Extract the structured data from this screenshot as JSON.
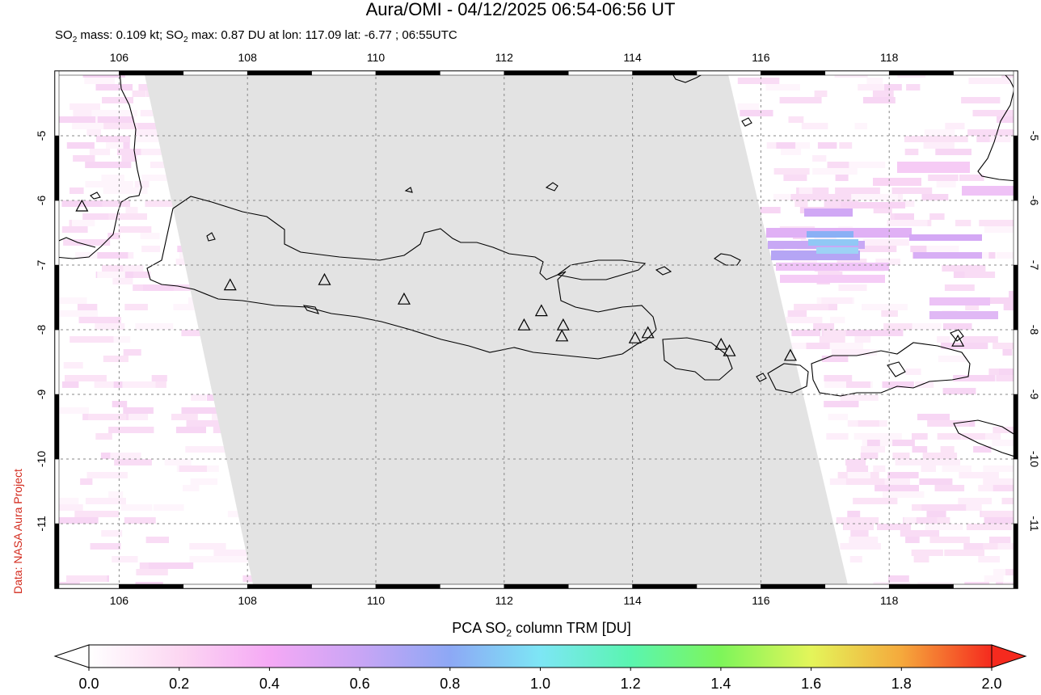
{
  "title": "Aura/OMI - 04/12/2025 06:54-06:56 UT",
  "subtitle": {
    "mass_prefix": "SO",
    "mass_sub": "2",
    "mass_text": " mass: 0.109 kt; SO",
    "max_sub": "2",
    "max_text": " max: 0.87 DU at lon: 117.09 lat: -6.77 ; 06:55UTC"
  },
  "credit": "Data: NASA Aura Project",
  "map": {
    "lon_range": [
      105,
      120
    ],
    "lat_range": [
      -12,
      -4
    ],
    "lon_ticks": [
      "106",
      "108",
      "110",
      "112",
      "114",
      "116",
      "118"
    ],
    "lon_values": [
      106,
      108,
      110,
      112,
      114,
      116,
      118
    ],
    "lat_ticks": [
      "-5",
      "-6",
      "-7",
      "-8",
      "-9",
      "-10",
      "-11"
    ],
    "lat_values": [
      -5,
      -6,
      -7,
      -8,
      -9,
      -10,
      -11
    ],
    "volcanoes": [
      {
        "lon": 105.42,
        "lat": -6.1
      },
      {
        "lon": 107.73,
        "lat": -7.32
      },
      {
        "lon": 109.2,
        "lat": -7.24
      },
      {
        "lon": 110.44,
        "lat": -7.54
      },
      {
        "lon": 112.31,
        "lat": -7.94
      },
      {
        "lon": 112.58,
        "lat": -7.72
      },
      {
        "lon": 112.92,
        "lat": -7.94
      },
      {
        "lon": 112.9,
        "lat": -8.11
      },
      {
        "lon": 114.04,
        "lat": -8.14
      },
      {
        "lon": 114.24,
        "lat": -8.06
      },
      {
        "lon": 115.38,
        "lat": -8.24
      },
      {
        "lon": 115.51,
        "lat": -8.34
      },
      {
        "lon": 116.46,
        "lat": -8.41
      },
      {
        "lon": 119.07,
        "lat": -8.19
      }
    ],
    "so2_max_location": {
      "lon": 117.09,
      "lat": -6.77
    }
  },
  "colorbar": {
    "title_prefix": "PCA SO",
    "title_sub": "2",
    "title_suffix": " column TRM [DU]",
    "ticks": [
      "0.0",
      "0.2",
      "0.4",
      "0.6",
      "0.8",
      "1.0",
      "1.2",
      "1.4",
      "1.6",
      "1.8",
      "2.0"
    ],
    "range": [
      0,
      2
    ],
    "colors": [
      "#ffffff",
      "#fcd7f2",
      "#f5a9f5",
      "#c9a5f5",
      "#8da8f5",
      "#7de6f5",
      "#5af5b0",
      "#7ef55a",
      "#e4f55a",
      "#f5a93c",
      "#f52a1e"
    ]
  }
}
